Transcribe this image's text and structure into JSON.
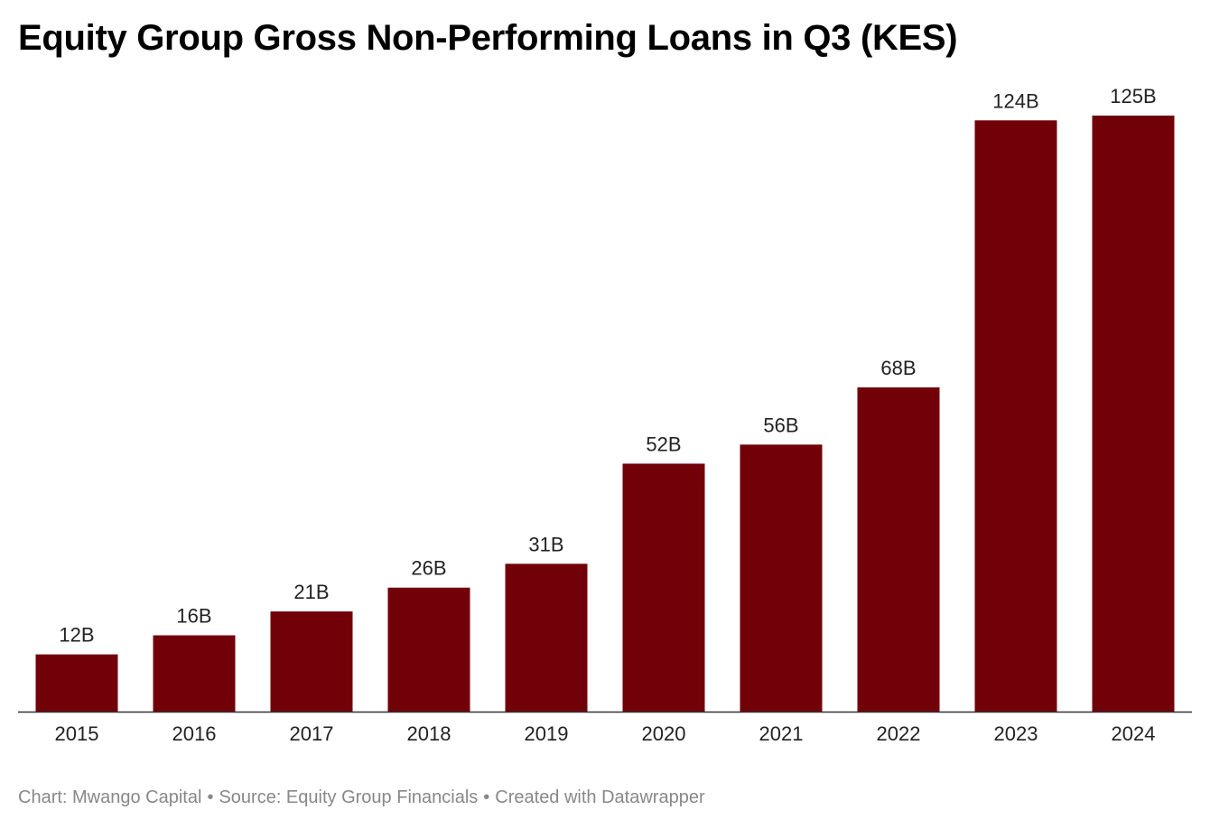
{
  "title": "Equity Group Gross Non-Performing Loans in Q3 (KES)",
  "footer": {
    "chart_credit": "Chart: Mwango Capital",
    "source": "Source: Equity Group Financials",
    "tool": "Created with Datawrapper",
    "separator": "•"
  },
  "colors": {
    "bar": "#720009",
    "baseline": "#333333",
    "text": "#222222",
    "footer_text": "#888888"
  },
  "chart_data": {
    "type": "bar",
    "title": "Equity Group Gross Non-Performing Loans in Q3 (KES)",
    "categories": [
      "2015",
      "2016",
      "2017",
      "2018",
      "2019",
      "2020",
      "2021",
      "2022",
      "2023",
      "2024"
    ],
    "values": [
      12,
      16,
      21,
      26,
      31,
      52,
      56,
      68,
      124,
      125
    ],
    "data_labels": [
      "12B",
      "16B",
      "21B",
      "26B",
      "31B",
      "52B",
      "56B",
      "68B",
      "124B",
      "125B"
    ],
    "xlabel": "",
    "ylabel": "",
    "ylim": [
      0,
      125
    ],
    "grid": false,
    "legend": "none"
  }
}
